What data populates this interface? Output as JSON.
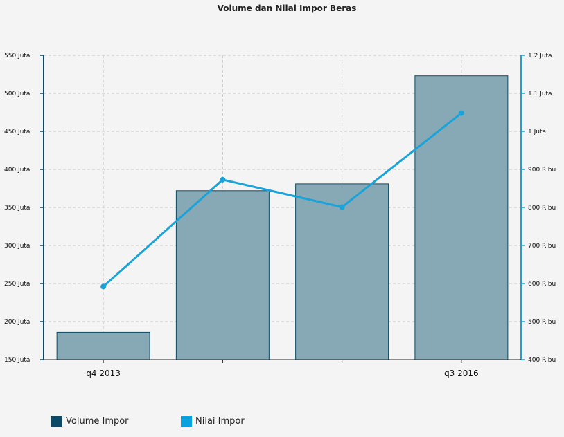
{
  "chart_data": {
    "type": "bar",
    "title": "Volume dan Nilai Impor Beras",
    "categories": [
      "q4 2013",
      "",
      "",
      "q3 2016"
    ],
    "x_tick_labels": [
      "q4 2013",
      "q3 2016"
    ],
    "series": [
      {
        "name": "Volume Impor",
        "type": "bar",
        "axis": "left",
        "color": "#87a9b5",
        "values": [
          186000000,
          372000000,
          381000000,
          523000000
        ]
      },
      {
        "name": "Nilai Impor",
        "type": "line",
        "axis": "right",
        "color": "#19a3d9",
        "values": [
          592000000,
          873000000,
          801000000,
          1048000000
        ]
      }
    ],
    "y_left": {
      "min": 150000000,
      "max": 550000000,
      "ticks": [
        "550 Juta",
        "500 Juta",
        "450 Juta",
        "400 Juta",
        "350 Juta",
        "300 Juta",
        "250 Juta",
        "200 Juta",
        "150 Juta"
      ]
    },
    "y_right": {
      "min": 400000000,
      "max": 1200000000,
      "ticks": [
        "1.2 Juta",
        "1.1 Juta",
        "1 Juta",
        "900 Ribu",
        "800 Ribu",
        "700 Ribu",
        "600 Ribu",
        "500 Ribu",
        "400 Ribu"
      ]
    },
    "grid": true,
    "legend_position": "bottom-left"
  },
  "legend": [
    {
      "label": "Volume Impor",
      "color": "#0b4a64"
    },
    {
      "label": "Nilai Impor",
      "color": "#0aa1dd"
    }
  ],
  "colors": {
    "bar_fill": "#87a9b5",
    "bar_stroke": "#0b4a64",
    "line": "#19a3d9",
    "left_axis": "#0b4a64",
    "right_axis": "#19a3d9",
    "grid": "#c8c8c8"
  }
}
